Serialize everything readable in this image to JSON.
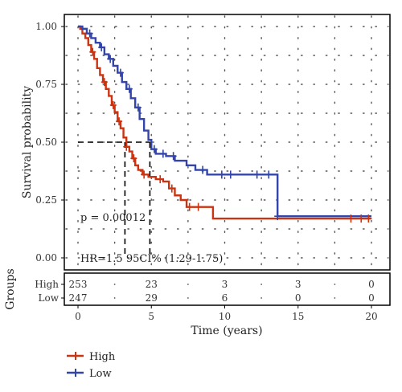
{
  "chart_data": {
    "type": "line",
    "subtype": "kaplan-meier",
    "title": "",
    "xlabel": "Time (years)",
    "ylabel": "Survival probability",
    "xlim": [
      0,
      20
    ],
    "ylim": [
      0,
      1
    ],
    "x_ticks": [
      0,
      5,
      10,
      15,
      20
    ],
    "y_ticks": [
      0,
      0.25,
      0.5,
      0.75,
      1
    ],
    "x_tick_labels": [
      "0",
      "5",
      "10",
      "15",
      "20"
    ],
    "y_tick_labels": [
      "0.00",
      "0.25",
      "0.50",
      "0.75",
      "1.00"
    ],
    "grid": "dotted",
    "legend_position": "bottom-left",
    "annotations": {
      "pvalue": "p = 0.00012",
      "hr": "HR=1.5 95CI% (1.29-1.75)"
    },
    "median_lines": [
      {
        "series": "High",
        "x": 3.2,
        "y": 0.5
      },
      {
        "series": "Low",
        "x": 4.9,
        "y": 0.5
      }
    ],
    "series": [
      {
        "name": "High",
        "color": "#CC3311",
        "points": [
          [
            0,
            1.0
          ],
          [
            0.15,
            0.99
          ],
          [
            0.3,
            0.97
          ],
          [
            0.5,
            0.95
          ],
          [
            0.7,
            0.92
          ],
          [
            0.9,
            0.89
          ],
          [
            1.1,
            0.86
          ],
          [
            1.3,
            0.82
          ],
          [
            1.5,
            0.79
          ],
          [
            1.7,
            0.76
          ],
          [
            1.9,
            0.73
          ],
          [
            2.1,
            0.7
          ],
          [
            2.3,
            0.66
          ],
          [
            2.5,
            0.63
          ],
          [
            2.7,
            0.59
          ],
          [
            2.9,
            0.56
          ],
          [
            3.1,
            0.52
          ],
          [
            3.3,
            0.48
          ],
          [
            3.5,
            0.46
          ],
          [
            3.7,
            0.43
          ],
          [
            3.9,
            0.4
          ],
          [
            4.1,
            0.38
          ],
          [
            4.4,
            0.36
          ],
          [
            4.8,
            0.35
          ],
          [
            5.3,
            0.34
          ],
          [
            5.8,
            0.33
          ],
          [
            6.2,
            0.3
          ],
          [
            6.6,
            0.27
          ],
          [
            7.0,
            0.25
          ],
          [
            7.4,
            0.22
          ],
          [
            8.5,
            0.22
          ],
          [
            9.2,
            0.17
          ],
          [
            20,
            0.17
          ]
        ],
        "censor_x": [
          1.0,
          1.8,
          2.4,
          2.8,
          3.3,
          3.8,
          4.5,
          5.6,
          6.4,
          7.6,
          8.2,
          18.6,
          19.3,
          19.8
        ]
      },
      {
        "name": "Low",
        "color": "#3344AA",
        "points": [
          [
            0,
            1.0
          ],
          [
            0.3,
            0.99
          ],
          [
            0.6,
            0.97
          ],
          [
            0.9,
            0.95
          ],
          [
            1.2,
            0.93
          ],
          [
            1.5,
            0.91
          ],
          [
            1.8,
            0.88
          ],
          [
            2.1,
            0.86
          ],
          [
            2.4,
            0.83
          ],
          [
            2.7,
            0.8
          ],
          [
            3.0,
            0.76
          ],
          [
            3.3,
            0.73
          ],
          [
            3.6,
            0.69
          ],
          [
            3.9,
            0.65
          ],
          [
            4.2,
            0.6
          ],
          [
            4.5,
            0.55
          ],
          [
            4.8,
            0.51
          ],
          [
            5.0,
            0.47
          ],
          [
            5.3,
            0.45
          ],
          [
            6.0,
            0.44
          ],
          [
            6.6,
            0.42
          ],
          [
            7.4,
            0.4
          ],
          [
            8.0,
            0.38
          ],
          [
            8.8,
            0.36
          ],
          [
            13.6,
            0.36
          ],
          [
            13.6,
            0.18
          ],
          [
            20,
            0.18
          ]
        ],
        "censor_x": [
          0.8,
          1.6,
          2.2,
          2.9,
          3.5,
          4.1,
          5.2,
          5.8,
          6.5,
          8.5,
          9.8,
          10.4,
          12.2,
          13.0,
          13.6
        ]
      }
    ],
    "risk_table": {
      "ylabel": "Groups",
      "time_points": [
        0,
        5,
        10,
        15,
        20
      ],
      "rows": [
        {
          "label": "High",
          "color": "#CC3311",
          "counts": [
            "253",
            "23",
            "3",
            "3",
            "0"
          ]
        },
        {
          "label": "Low",
          "color": "#3344AA",
          "counts": [
            "247",
            "29",
            "6",
            "0",
            "0"
          ]
        }
      ]
    },
    "legend": [
      {
        "label": "High",
        "color": "#CC3311"
      },
      {
        "label": "Low",
        "color": "#3344AA"
      }
    ]
  }
}
